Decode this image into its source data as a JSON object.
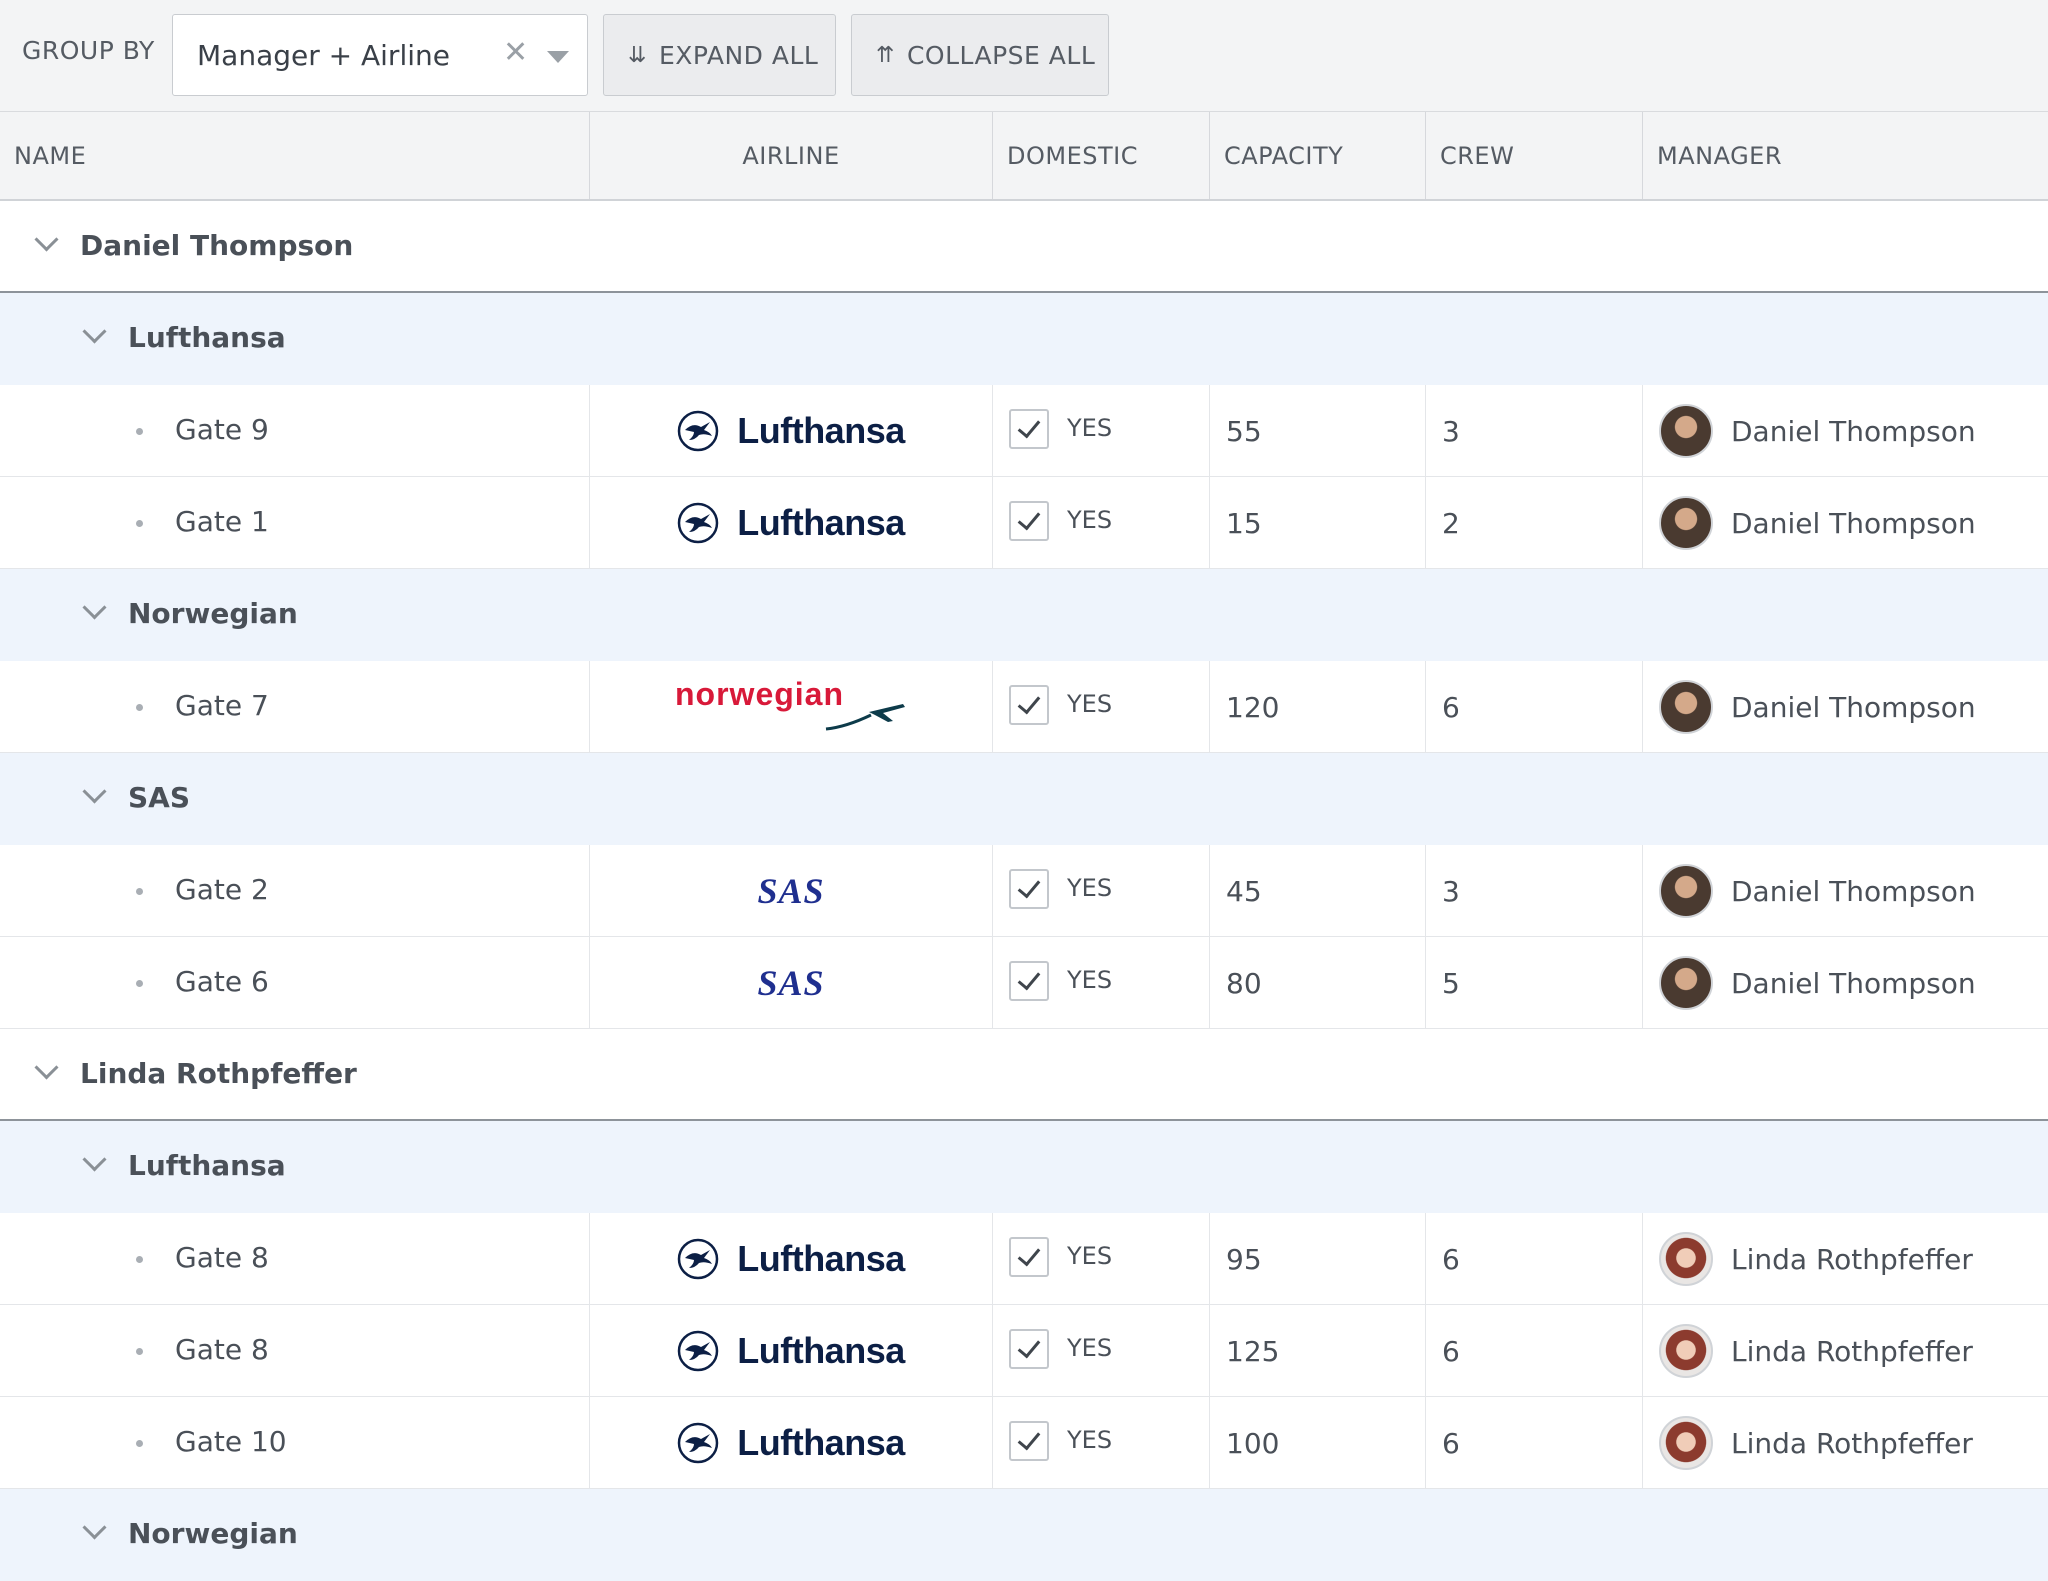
{
  "toolbar": {
    "group_by_label": "GROUP BY",
    "group_by_value": "Manager + Airline",
    "clear_icon": "close-icon",
    "expand_all_label": "EXPAND ALL",
    "collapse_all_label": "COLLAPSE ALL"
  },
  "columns": {
    "name": "NAME",
    "airline": "AIRLINE",
    "domestic": "DOMESTIC",
    "capacity": "CAPACITY",
    "crew": "CREW",
    "manager": "MANAGER"
  },
  "airline_logos": {
    "Lufthansa": "Lufthansa",
    "Norwegian": "norwegian",
    "SAS": "SAS"
  },
  "groups": {
    "g0": {
      "title": "Daniel Thompson",
      "a0": {
        "title": "Lufthansa",
        "r0": {
          "name": "Gate 9",
          "airline": "Lufthansa",
          "domestic": "YES",
          "capacity": "55",
          "crew": "3",
          "manager": "Daniel Thompson"
        },
        "r1": {
          "name": "Gate 1",
          "airline": "Lufthansa",
          "domestic": "YES",
          "capacity": "15",
          "crew": "2",
          "manager": "Daniel Thompson"
        }
      },
      "a1": {
        "title": "Norwegian",
        "r0": {
          "name": "Gate 7",
          "airline": "norwegian",
          "domestic": "YES",
          "capacity": "120",
          "crew": "6",
          "manager": "Daniel Thompson"
        }
      },
      "a2": {
        "title": "SAS",
        "r0": {
          "name": "Gate 2",
          "airline": "SAS",
          "domestic": "YES",
          "capacity": "45",
          "crew": "3",
          "manager": "Daniel Thompson"
        },
        "r1": {
          "name": "Gate 6",
          "airline": "SAS",
          "domestic": "YES",
          "capacity": "80",
          "crew": "5",
          "manager": "Daniel Thompson"
        }
      }
    },
    "g1": {
      "title": "Linda Rothpfeffer",
      "a0": {
        "title": "Lufthansa",
        "r0": {
          "name": "Gate 8",
          "airline": "Lufthansa",
          "domestic": "YES",
          "capacity": "95",
          "crew": "6",
          "manager": "Linda Rothpfeffer"
        },
        "r1": {
          "name": "Gate 8",
          "airline": "Lufthansa",
          "domestic": "YES",
          "capacity": "125",
          "crew": "6",
          "manager": "Linda Rothpfeffer"
        },
        "r2": {
          "name": "Gate 10",
          "airline": "Lufthansa",
          "domestic": "YES",
          "capacity": "100",
          "crew": "6",
          "manager": "Linda Rothpfeffer"
        }
      },
      "a1": {
        "title": "Norwegian"
      }
    }
  }
}
